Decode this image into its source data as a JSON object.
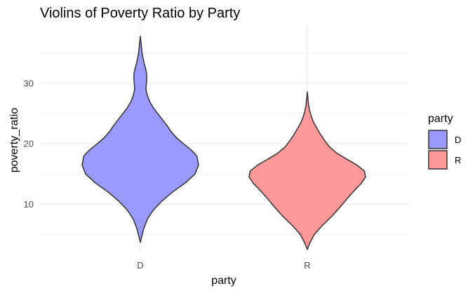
{
  "chart_data": {
    "type": "violin",
    "title": "Violins of Poverty Ratio by Party",
    "xlabel": "party",
    "ylabel": "poverty_ratio",
    "categories": [
      "D",
      "R"
    ],
    "ylim": [
      2.5,
      39.5
    ],
    "yticks": [
      10,
      20,
      30
    ],
    "grid": true,
    "legend": {
      "title": "party",
      "placement": "right",
      "entries": [
        {
          "label": "D",
          "color": "#9999ff"
        },
        {
          "label": "R",
          "color": "#ff9999"
        }
      ]
    },
    "series": [
      {
        "name": "D",
        "color": "#9999ff",
        "density_profile": [
          [
            3.7,
            0.0
          ],
          [
            4.5,
            0.02
          ],
          [
            6,
            0.06
          ],
          [
            7.5,
            0.12
          ],
          [
            9,
            0.22
          ],
          [
            10.5,
            0.37
          ],
          [
            12,
            0.55
          ],
          [
            13.5,
            0.77
          ],
          [
            15,
            0.94
          ],
          [
            16.5,
            1.0
          ],
          [
            18,
            0.97
          ],
          [
            19,
            0.87
          ],
          [
            20,
            0.74
          ],
          [
            21,
            0.62
          ],
          [
            22,
            0.53
          ],
          [
            23,
            0.46
          ],
          [
            24,
            0.38
          ],
          [
            25,
            0.3
          ],
          [
            26,
            0.22
          ],
          [
            27,
            0.16
          ],
          [
            28,
            0.12
          ],
          [
            28.8,
            0.1
          ],
          [
            29.5,
            0.1
          ],
          [
            30.5,
            0.11
          ],
          [
            31.5,
            0.11
          ],
          [
            32.5,
            0.09
          ],
          [
            33.5,
            0.06
          ],
          [
            35,
            0.03
          ],
          [
            36.5,
            0.015
          ],
          [
            37.8,
            0.0
          ]
        ]
      },
      {
        "name": "R",
        "color": "#ff9999",
        "density_profile": [
          [
            2.5,
            0.0
          ],
          [
            3.5,
            0.04
          ],
          [
            5,
            0.12
          ],
          [
            6.5,
            0.26
          ],
          [
            8,
            0.42
          ],
          [
            9.5,
            0.56
          ],
          [
            11,
            0.69
          ],
          [
            12.5,
            0.83
          ],
          [
            13.5,
            0.93
          ],
          [
            14.5,
            1.0
          ],
          [
            15.5,
            0.98
          ],
          [
            16.5,
            0.85
          ],
          [
            17.5,
            0.67
          ],
          [
            18.5,
            0.5
          ],
          [
            19.5,
            0.38
          ],
          [
            20.5,
            0.3
          ],
          [
            21.5,
            0.23
          ],
          [
            22.5,
            0.17
          ],
          [
            23.5,
            0.11
          ],
          [
            24.5,
            0.07
          ],
          [
            25.5,
            0.04
          ],
          [
            26.5,
            0.02
          ],
          [
            28.6,
            0.0
          ]
        ]
      }
    ]
  }
}
